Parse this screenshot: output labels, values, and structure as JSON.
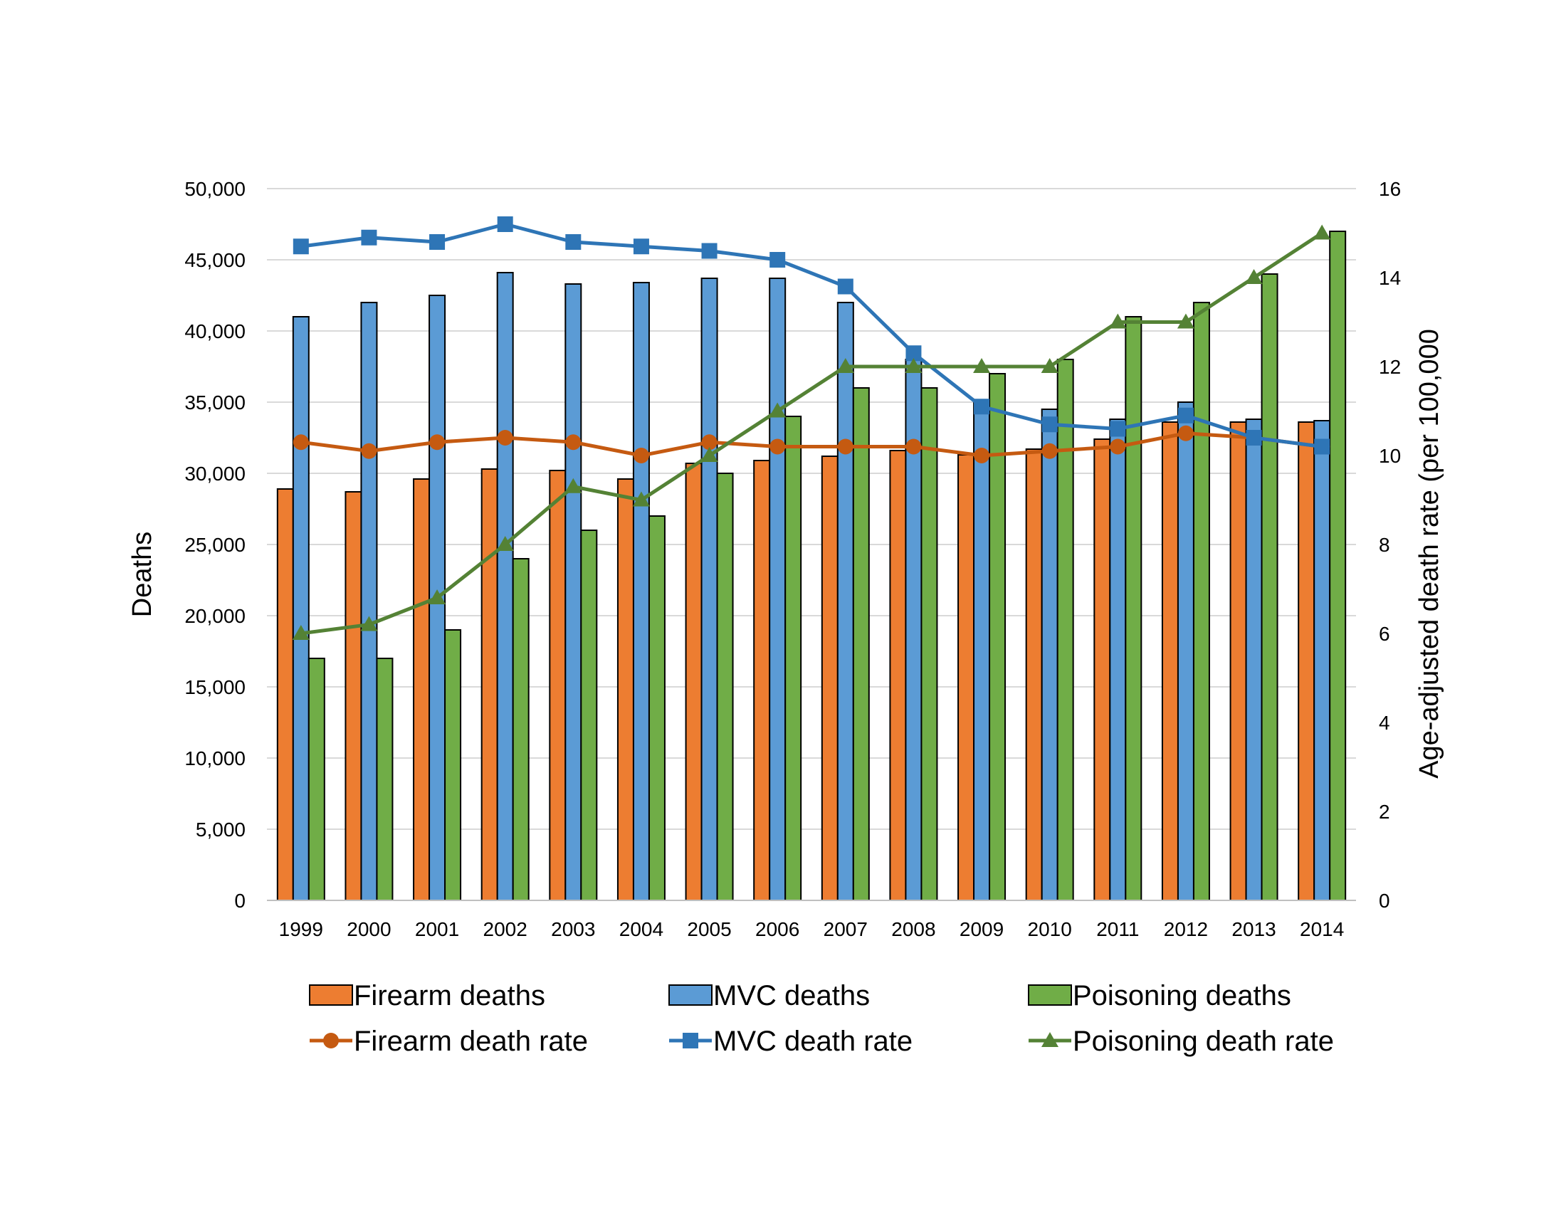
{
  "chart_data": {
    "type": "bar",
    "title": "",
    "categories": [
      "1999",
      "2000",
      "2001",
      "2002",
      "2003",
      "2004",
      "2005",
      "2006",
      "2007",
      "2008",
      "2009",
      "2010",
      "2011",
      "2012",
      "2013",
      "2014"
    ],
    "series": [
      {
        "name": "Firearm deaths",
        "type": "bar",
        "axis": "left",
        "color": "#ED7D31",
        "values": [
          28900,
          28700,
          29600,
          30300,
          30200,
          29600,
          30700,
          30900,
          31200,
          31600,
          31300,
          31700,
          32400,
          33600,
          33600,
          33600
        ]
      },
      {
        "name": "MVC deaths",
        "type": "bar",
        "axis": "left",
        "color": "#5B9BD5",
        "values": [
          41000,
          42000,
          42500,
          44100,
          43300,
          43400,
          43700,
          43700,
          42000,
          38000,
          35000,
          34500,
          33800,
          35000,
          33800,
          33700
        ]
      },
      {
        "name": "Poisoning deaths",
        "type": "bar",
        "axis": "left",
        "color": "#70AD47",
        "values": [
          17000,
          17000,
          19000,
          24000,
          26000,
          27000,
          30000,
          34000,
          36000,
          36000,
          37000,
          38000,
          41000,
          42000,
          44000,
          47000
        ]
      },
      {
        "name": "Firearm death rate",
        "type": "line",
        "axis": "right",
        "color": "#C55A11",
        "marker": "circle",
        "values": [
          10.3,
          10.1,
          10.3,
          10.4,
          10.3,
          10.0,
          10.3,
          10.2,
          10.2,
          10.2,
          10.0,
          10.1,
          10.2,
          10.5,
          10.4,
          10.2
        ]
      },
      {
        "name": "MVC death rate",
        "type": "line",
        "axis": "right",
        "color": "#2E75B6",
        "marker": "square",
        "values": [
          14.7,
          14.9,
          14.8,
          15.2,
          14.8,
          14.7,
          14.6,
          14.4,
          13.8,
          12.3,
          11.1,
          10.7,
          10.6,
          10.9,
          10.4,
          10.2
        ]
      },
      {
        "name": "Poisoning death rate",
        "type": "line",
        "axis": "right",
        "color": "#548235",
        "marker": "triangle",
        "values": [
          6.0,
          6.2,
          6.8,
          8.0,
          9.3,
          9.0,
          10.0,
          11.0,
          12.0,
          12.0,
          12.0,
          12.0,
          13.0,
          13.0,
          14.0,
          15.0
        ]
      }
    ],
    "ylabel": "Deaths",
    "ylim": [
      0,
      50000
    ],
    "yticks": [
      0,
      5000,
      10000,
      15000,
      20000,
      25000,
      30000,
      35000,
      40000,
      45000,
      50000
    ],
    "ytick_labels": [
      "0",
      "5,000",
      "10,000",
      "15,000",
      "20,000",
      "25,000",
      "30,000",
      "35,000",
      "40,000",
      "45,000",
      "50,000"
    ],
    "y2label": "Age-adjusted death rate (per 100,000",
    "y2lim": [
      0,
      16
    ],
    "y2ticks": [
      0,
      2,
      4,
      6,
      8,
      10,
      12,
      14,
      16
    ],
    "y2tick_labels": [
      "0",
      "2",
      "4",
      "6",
      "8",
      "10",
      "12",
      "14",
      "16"
    ],
    "grid": true,
    "legend_position": "bottom"
  }
}
